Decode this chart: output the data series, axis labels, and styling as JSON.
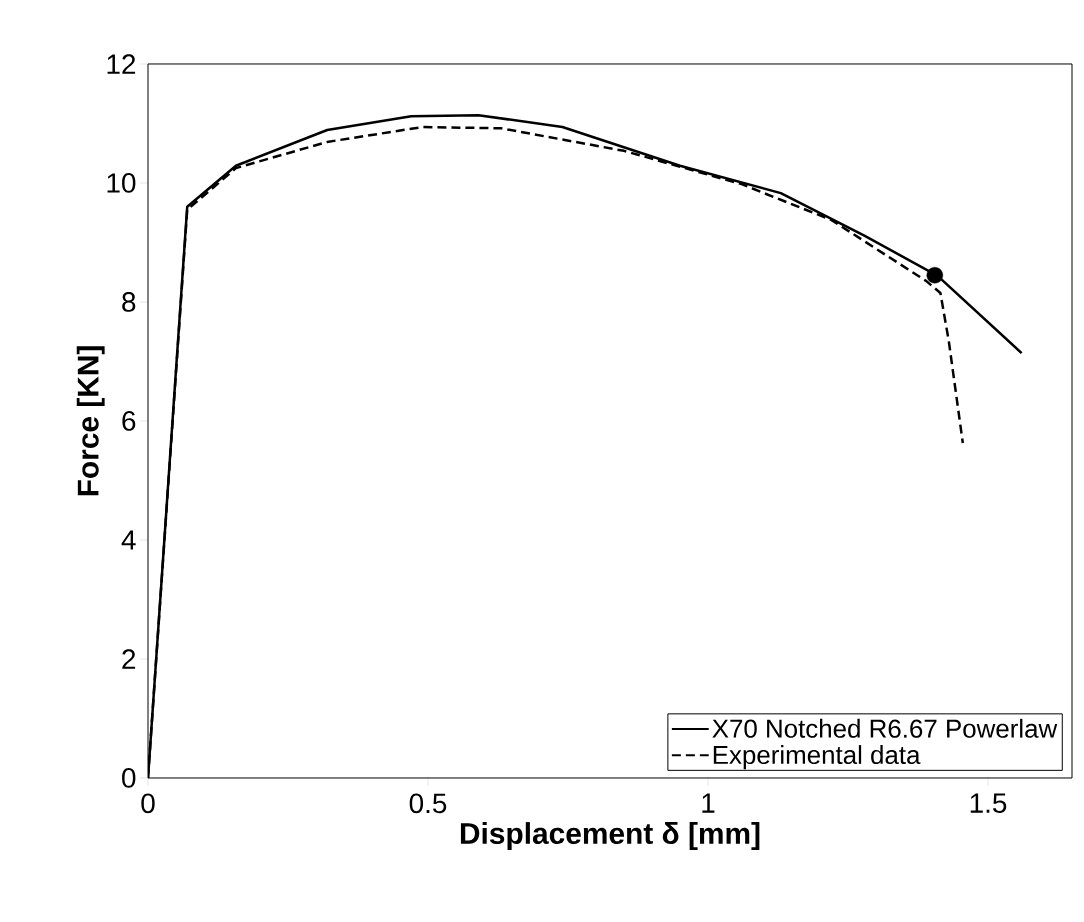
{
  "chart_data": {
    "type": "line",
    "xlabel": "Displacement δ [mm]",
    "ylabel": "Force [KN]",
    "xlim": [
      0,
      1.65
    ],
    "xticks": [
      0,
      0.5,
      1,
      1.5
    ],
    "ylim": [
      0,
      12
    ],
    "yticks": [
      0,
      2,
      4,
      6,
      8,
      10,
      12
    ],
    "legend": "bottom right",
    "series": [
      {
        "name": "X70 Notched R6.67 Powerlaw",
        "color": "#000000",
        "line_style": "solid",
        "x": [
          0,
          0.07,
          0.157,
          0.32,
          0.47,
          0.59,
          0.74,
          0.95,
          1.13,
          1.28,
          1.41,
          1.56
        ],
        "values": [
          0,
          9.6,
          10.29,
          10.89,
          11.12,
          11.14,
          10.94,
          10.29,
          9.83,
          9.11,
          8.44,
          7.14
        ]
      },
      {
        "name": "Experimental data",
        "color": "#000000",
        "line_style": "dashed",
        "x": [
          0,
          0.07,
          0.157,
          0.32,
          0.49,
          0.63,
          0.85,
          1.06,
          1.22,
          1.39,
          1.415,
          1.43,
          1.455
        ],
        "values": [
          0,
          9.55,
          10.25,
          10.69,
          10.94,
          10.92,
          10.54,
          9.98,
          9.38,
          8.35,
          8.15,
          7.34,
          5.63
        ]
      },
      {
        "type": "scatter",
        "marker": "circle",
        "color": "#000000",
        "x": [
          1.405
        ],
        "values": [
          8.45
        ]
      }
    ]
  }
}
